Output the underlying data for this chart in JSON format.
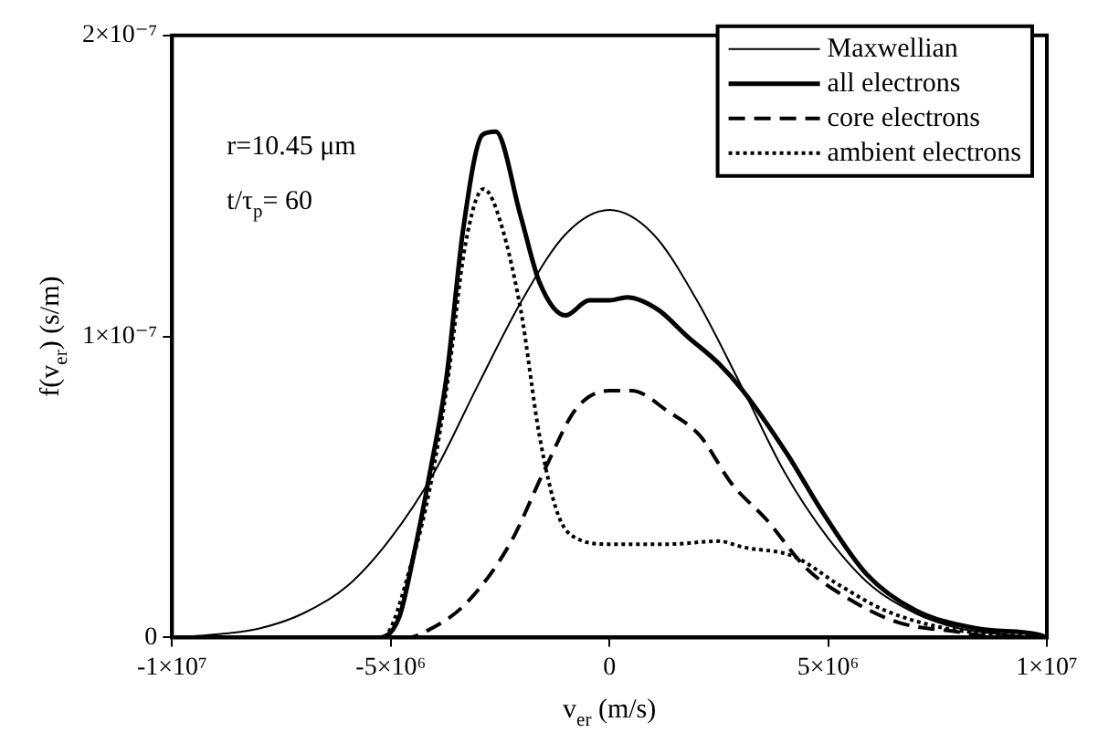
{
  "chart_data": {
    "type": "line",
    "xlabel": "v$_{er}$ (m/s)",
    "ylabel": "f(v$_{er}$) (s/m)",
    "xlim": [
      -10000000.0,
      10000000.0
    ],
    "ylim": [
      0,
      2e-07
    ],
    "xticks": [
      {
        "value": -10000000.0,
        "label": "-1×10⁷"
      },
      {
        "value": -5000000.0,
        "label": "-5×10⁶"
      },
      0,
      {
        "value": 5000000.0,
        "label": "5×10⁶"
      },
      {
        "value": 10000000.0,
        "label": "1×10⁷"
      }
    ],
    "yticks": [
      0,
      {
        "value": 1e-07,
        "label": "1×10⁻⁷"
      },
      {
        "value": 2e-07,
        "label": "2×10⁻⁷"
      }
    ],
    "grid": false,
    "legend": "top right",
    "marker": "none",
    "annotations": [
      "r=10.45 μm",
      "t/τ$_{p}$= 60"
    ],
    "series": [
      {
        "name": "Maxwellian",
        "color": "#000000",
        "line_style": "solid",
        "x": [
          -10000000.0,
          -9000000.0,
          -8000000.0,
          -7000000.0,
          -6000000.0,
          -5000000.0,
          -4000000.0,
          -3000000.0,
          -2000000.0,
          -1000000.0,
          0,
          1000000.0,
          2000000.0,
          3000000.0,
          4000000.0,
          5000000.0,
          6000000.0,
          7000000.0,
          8000000.0,
          9000000.0,
          10000000.0
        ],
        "values": [
          0,
          1e-09,
          3e-09,
          8e-09,
          1.7e-08,
          3.3e-08,
          5.5e-08,
          8.4e-08,
          1.12e-07,
          1.34e-07,
          1.42e-07,
          1.34e-07,
          1.12e-07,
          8.4e-08,
          5.5e-08,
          3.3e-08,
          1.7e-08,
          8e-09,
          3e-09,
          1e-09,
          0
        ]
      },
      {
        "name": "all electrons",
        "color": "#000000",
        "line_style": "solid",
        "x": [
          -10000000.0,
          -5240000.0,
          -4800000.0,
          -4480000.0,
          -4140000.0,
          -3720000.0,
          -3340000.0,
          -2900000.0,
          -2600000.0,
          -2030000.0,
          -1600000.0,
          -1000000.0,
          -460000.0,
          0,
          400000.0,
          1100000.0,
          1780000.0,
          2500000.0,
          3050000.0,
          4060000.0,
          4900000.0,
          5880000.0,
          7000000.0,
          8400000.0,
          9800000.0,
          10000000.0
        ],
        "values": [
          0,
          0,
          7e-09,
          2.7e-08,
          5.2e-08,
          8.7e-08,
          1.36e-07,
          1.67e-07,
          1.68e-07,
          1.4e-07,
          1.18e-07,
          1.07e-07,
          1.12e-07,
          1.12e-07,
          1.13e-07,
          1.09e-07,
          1e-07,
          9.1e-08,
          8.2e-08,
          6.1e-08,
          4.1e-08,
          2.1e-08,
          9e-09,
          3e-09,
          1e-09,
          0
        ]
      },
      {
        "name": "core electrons",
        "color": "#000000",
        "line_style": "dashed",
        "x": [
          -10000000.0,
          -4600000.0,
          -4200000.0,
          -3300000.0,
          -2280000.0,
          -1440000.0,
          -760000.0,
          0,
          500000.0,
          1350000.0,
          2070000.0,
          2800000.0,
          3600000.0,
          4500000.0,
          5450000.0,
          6600000.0,
          7900000.0,
          9000000.0,
          10000000.0
        ],
        "values": [
          0,
          0,
          2e-09,
          1.1e-08,
          3.1e-08,
          5.7e-08,
          7.6e-08,
          8.2e-08,
          8.2e-08,
          7.5e-08,
          6.7e-08,
          5.1e-08,
          3.9e-08,
          2.3e-08,
          1.3e-08,
          5e-09,
          2e-09,
          0,
          0
        ]
      },
      {
        "name": "ambient electrons",
        "color": "#000000",
        "line_style": "dotted",
        "x": [
          -10000000.0,
          -5200000.0,
          -4500000.0,
          -4100000.0,
          -3700000.0,
          -3300000.0,
          -2880000.0,
          -2580000.0,
          -2030000.0,
          -1600000.0,
          -1180000.0,
          -760000.0,
          0,
          1350000.0,
          2500000.0,
          3050000.0,
          4200000.0,
          5300000.0,
          6300000.0,
          7700000.0,
          9000000.0,
          10000000.0
        ],
        "values": [
          0,
          0,
          2.6e-08,
          5e-08,
          8.5e-08,
          1.3e-07,
          1.49e-07,
          1.42e-07,
          1.09e-07,
          6.7e-08,
          4.1e-08,
          3.3e-08,
          3.1e-08,
          3.1e-08,
          3.2e-08,
          3e-08,
          2.7e-08,
          1.7e-08,
          9e-09,
          3e-09,
          1e-09,
          0
        ]
      }
    ]
  }
}
